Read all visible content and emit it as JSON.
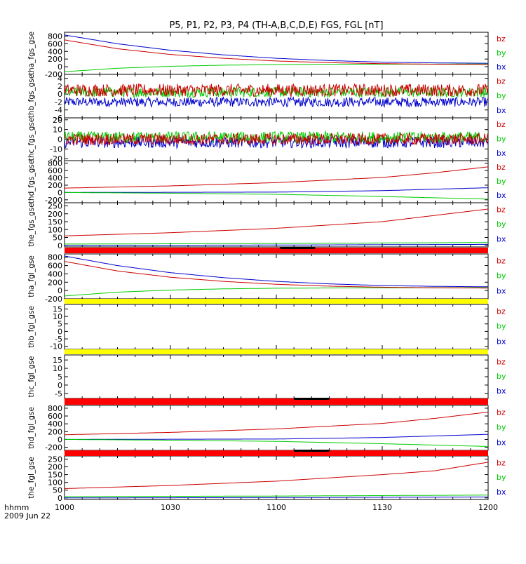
{
  "title": "P5, P1, P2, P3, P4 (TH-A,B,C,D,E) FGS, FGL [nT]",
  "time_axis": {
    "label_line1": "hhmm",
    "label_line2": "2009 Jun 22",
    "ticks": [
      "1000",
      "1030",
      "1100",
      "1130",
      "1200"
    ],
    "range_minutes": [
      0,
      120
    ]
  },
  "colors": {
    "bx": "#0000cc",
    "by": "#00cc00",
    "bz": "#cc0000",
    "flag_red": "#ff0000",
    "flag_yellow": "#ffff00",
    "flag_black": "#000000"
  },
  "legend": [
    "bz",
    "by",
    "bx"
  ],
  "panels": [
    {
      "id": "tha_fgs",
      "ylabel": "tha_fgs_gse",
      "yticks": [
        "800",
        "600",
        "400",
        "200",
        "0",
        "-200"
      ],
      "ylim": [
        -200,
        900
      ],
      "series": [
        {
          "name": "bx",
          "kind": "smooth",
          "x": [
            0,
            15,
            30,
            45,
            60,
            75,
            90,
            105,
            120
          ],
          "y": [
            830,
            600,
            430,
            310,
            220,
            160,
            120,
            100,
            90
          ]
        },
        {
          "name": "by",
          "kind": "smooth",
          "x": [
            0,
            15,
            30,
            45,
            60,
            75,
            90,
            105,
            120
          ],
          "y": [
            -130,
            -40,
            10,
            40,
            55,
            62,
            66,
            68,
            70
          ]
        },
        {
          "name": "bz",
          "kind": "smooth",
          "x": [
            0,
            15,
            30,
            45,
            60,
            75,
            90,
            105,
            120
          ],
          "y": [
            700,
            470,
            320,
            220,
            150,
            105,
            80,
            65,
            60
          ]
        }
      ]
    },
    {
      "id": "thb_fgs",
      "ylabel": "thb_fgs_gse",
      "yticks": [
        "4",
        "2",
        "0",
        "-2",
        "-4",
        "-6"
      ],
      "ylim": [
        -6,
        5
      ],
      "series": [
        {
          "name": "bx",
          "kind": "noise",
          "mean": -2.0,
          "amp": 1.2
        },
        {
          "name": "by",
          "kind": "noise",
          "mean": 0.5,
          "amp": 1.3
        },
        {
          "name": "bz",
          "kind": "noise",
          "mean": 1.0,
          "amp": 1.6
        }
      ]
    },
    {
      "id": "thc_fgs",
      "ylabel": "thc_fgs_gse",
      "yticks": [
        "20",
        "10",
        "0",
        "-10",
        "-20"
      ],
      "ylim": [
        -22,
        22
      ],
      "series": [
        {
          "name": "bx",
          "kind": "noise",
          "mean": -3.0,
          "amp": 6
        },
        {
          "name": "by",
          "kind": "noise",
          "mean": 2.0,
          "amp": 6
        },
        {
          "name": "bz",
          "kind": "noise",
          "mean": 0.0,
          "amp": 6
        }
      ]
    },
    {
      "id": "thd_fgs",
      "ylabel": "thd_fgs_gse",
      "yticks": [
        "800",
        "600",
        "400",
        "200",
        "0",
        "-200"
      ],
      "ylim": [
        -280,
        870
      ],
      "series": [
        {
          "name": "bx",
          "kind": "smooth",
          "x": [
            0,
            60,
            90,
            120
          ],
          "y": [
            0,
            10,
            50,
            130
          ]
        },
        {
          "name": "by",
          "kind": "smooth",
          "x": [
            0,
            30,
            60,
            90,
            120
          ],
          "y": [
            0,
            -20,
            -50,
            -110,
            -180
          ]
        },
        {
          "name": "bz",
          "kind": "smooth",
          "x": [
            0,
            30,
            60,
            90,
            105,
            120
          ],
          "y": [
            120,
            180,
            270,
            410,
            540,
            700
          ]
        }
      ]
    },
    {
      "id": "the_fgs",
      "ylabel": "the_fgs_gse",
      "yticks": [
        "250",
        "200",
        "150",
        "100",
        "50",
        "0"
      ],
      "ylim": [
        -10,
        270
      ],
      "series": [
        {
          "name": "bx",
          "kind": "smooth",
          "x": [
            0,
            60,
            120
          ],
          "y": [
            0,
            2,
            6
          ]
        },
        {
          "name": "by",
          "kind": "smooth",
          "x": [
            0,
            60,
            120
          ],
          "y": [
            8,
            12,
            18
          ]
        },
        {
          "name": "bz",
          "kind": "smooth",
          "x": [
            0,
            30,
            60,
            90,
            120
          ],
          "y": [
            60,
            80,
            108,
            150,
            230
          ]
        }
      ]
    },
    {
      "id": "tha_fgl",
      "ylabel": "tha_fgl_gse",
      "yticks": [
        "800",
        "600",
        "400",
        "200",
        "0",
        "-200"
      ],
      "ylim": [
        -200,
        880
      ],
      "series": [
        {
          "name": "bx",
          "kind": "smooth",
          "x": [
            0,
            15,
            30,
            45,
            60,
            75,
            90,
            105,
            120
          ],
          "y": [
            830,
            600,
            430,
            310,
            220,
            160,
            120,
            100,
            90
          ]
        },
        {
          "name": "by",
          "kind": "smooth",
          "x": [
            0,
            15,
            30,
            45,
            60,
            75,
            90,
            105,
            120
          ],
          "y": [
            -130,
            -40,
            10,
            40,
            55,
            62,
            66,
            68,
            70
          ]
        },
        {
          "name": "bz",
          "kind": "smooth",
          "x": [
            0,
            15,
            30,
            45,
            60,
            75,
            90,
            105,
            120
          ],
          "y": [
            700,
            470,
            320,
            220,
            150,
            105,
            80,
            65,
            60
          ]
        }
      ]
    },
    {
      "id": "thb_fgl",
      "ylabel": "thb_fgl_gse",
      "yticks": [
        "15",
        "10",
        "5",
        "0",
        "-5",
        "-10"
      ],
      "ylim": [
        -12,
        18
      ],
      "series": []
    },
    {
      "id": "thc_fgl",
      "ylabel": "thc_fgl_gse",
      "yticks": [
        "15",
        "10",
        "5",
        "0",
        "-5"
      ],
      "ylim": [
        -8,
        18
      ],
      "series": []
    },
    {
      "id": "thd_fgl",
      "ylabel": "thd_fgl_gse",
      "yticks": [
        "800",
        "600",
        "400",
        "200",
        "0",
        "-200"
      ],
      "ylim": [
        -280,
        870
      ],
      "series": [
        {
          "name": "bx",
          "kind": "smooth",
          "x": [
            0,
            60,
            90,
            120
          ],
          "y": [
            0,
            10,
            50,
            130
          ]
        },
        {
          "name": "by",
          "kind": "smooth",
          "x": [
            0,
            30,
            60,
            90,
            120
          ],
          "y": [
            0,
            -20,
            -50,
            -110,
            -180
          ]
        },
        {
          "name": "bz",
          "kind": "smooth",
          "x": [
            0,
            30,
            60,
            90,
            105,
            120
          ],
          "y": [
            120,
            180,
            270,
            410,
            540,
            700
          ]
        }
      ]
    },
    {
      "id": "the_fgl",
      "ylabel": "the_fgl_gse",
      "yticks": [
        "250",
        "200",
        "150",
        "100",
        "50",
        "0"
      ],
      "ylim": [
        -10,
        270
      ],
      "series": [
        {
          "name": "bx",
          "kind": "smooth",
          "x": [
            0,
            60,
            120
          ],
          "y": [
            0,
            2,
            6
          ]
        },
        {
          "name": "by",
          "kind": "smooth",
          "x": [
            0,
            60,
            120
          ],
          "y": [
            8,
            12,
            18
          ]
        },
        {
          "name": "bz",
          "kind": "smooth",
          "x": [
            0,
            30,
            60,
            90,
            105,
            120
          ],
          "y": [
            60,
            80,
            108,
            150,
            175,
            230
          ]
        }
      ]
    }
  ],
  "flag_bars": [
    {
      "after_panel": "the_fgs",
      "color": "red",
      "black_segments": [
        [
          61,
          71
        ]
      ]
    },
    {
      "after_panel": "tha_fgl",
      "color": "yellow",
      "black_segments": []
    },
    {
      "after_panel": "thb_fgl",
      "color": "yellow",
      "black_segments": []
    },
    {
      "after_panel": "thc_fgl",
      "color": "red",
      "black_segments": [
        [
          65,
          75
        ]
      ]
    },
    {
      "after_panel": "thd_fgl",
      "color": "red",
      "black_segments": [
        [
          65,
          75
        ]
      ]
    }
  ]
}
